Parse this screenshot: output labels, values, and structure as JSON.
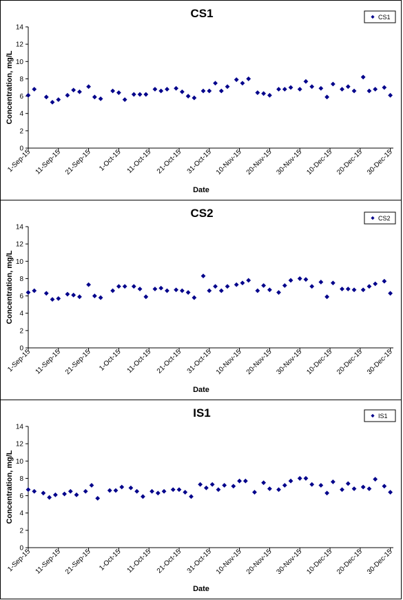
{
  "marker_color": "#00008B",
  "chart_data": [
    {
      "type": "scatter",
      "title": "CS1",
      "xlabel": "Date",
      "ylabel": "Concentration, mg/L",
      "legend": [
        "CS1"
      ],
      "legend_position": "top-right",
      "ylim": [
        0,
        14
      ],
      "yticks": [
        "0",
        "2",
        "4",
        "6",
        "8",
        "10",
        "12",
        "14"
      ],
      "xlim": [
        "2015-09-01",
        "2015-12-31"
      ],
      "xticks": [
        "1-Sep-15",
        "11-Sep-15",
        "21-Sep-15",
        "1-Oct-15",
        "11-Oct-15",
        "21-Oct-15",
        "31-Oct-15",
        "10-Nov-15",
        "20-Nov-15",
        "30-Nov-15",
        "10-Dec-15",
        "20-Dec-15",
        "30-Dec-15"
      ],
      "series": [
        {
          "name": "CS1",
          "x": [
            "2015-09-01",
            "2015-09-03",
            "2015-09-07",
            "2015-09-09",
            "2015-09-11",
            "2015-09-14",
            "2015-09-16",
            "2015-09-18",
            "2015-09-21",
            "2015-09-23",
            "2015-09-25",
            "2015-09-29",
            "2015-10-01",
            "2015-10-03",
            "2015-10-06",
            "2015-10-08",
            "2015-10-10",
            "2015-10-13",
            "2015-10-15",
            "2015-10-17",
            "2015-10-20",
            "2015-10-22",
            "2015-10-24",
            "2015-10-26",
            "2015-10-29",
            "2015-10-31",
            "2015-11-02",
            "2015-11-04",
            "2015-11-06",
            "2015-11-09",
            "2015-11-11",
            "2015-11-13",
            "2015-11-16",
            "2015-11-18",
            "2015-11-20",
            "2015-11-23",
            "2015-11-25",
            "2015-11-27",
            "2015-11-30",
            "2015-12-02",
            "2015-12-04",
            "2015-12-07",
            "2015-12-09",
            "2015-12-11",
            "2015-12-14",
            "2015-12-16",
            "2015-12-18",
            "2015-12-21",
            "2015-12-23",
            "2015-12-25",
            "2015-12-28",
            "2015-12-30"
          ],
          "y": [
            6.1,
            6.8,
            5.9,
            5.3,
            5.6,
            6.1,
            6.7,
            6.5,
            7.1,
            5.9,
            5.7,
            6.6,
            6.4,
            5.6,
            6.2,
            6.2,
            6.2,
            6.8,
            6.6,
            6.8,
            6.9,
            6.5,
            6.0,
            5.8,
            6.6,
            6.6,
            7.5,
            6.6,
            7.1,
            7.9,
            7.5,
            8.0,
            6.4,
            6.3,
            6.1,
            6.8,
            6.8,
            7.0,
            6.8,
            7.7,
            7.1,
            6.9,
            5.9,
            7.4,
            6.8,
            7.1,
            6.6,
            8.2,
            6.6,
            6.8,
            7.0,
            6.1
          ]
        }
      ]
    },
    {
      "type": "scatter",
      "title": "CS2",
      "xlabel": "Date",
      "ylabel": "Concentration, mg/L",
      "legend": [
        "CS2"
      ],
      "legend_position": "top-right",
      "ylim": [
        0,
        14
      ],
      "yticks": [
        "0",
        "2",
        "4",
        "6",
        "8",
        "10",
        "12",
        "14"
      ],
      "xlim": [
        "2015-09-01",
        "2015-12-31"
      ],
      "xticks": [
        "1-Sep-15",
        "11-Sep-15",
        "21-Sep-15",
        "1-Oct-15",
        "11-Oct-15",
        "21-Oct-15",
        "31-Oct-15",
        "10-Nov-15",
        "20-Nov-15",
        "30-Nov-15",
        "10-Dec-15",
        "20-Dec-15",
        "30-Dec-15"
      ],
      "series": [
        {
          "name": "CS2",
          "x": [
            "2015-09-01",
            "2015-09-03",
            "2015-09-07",
            "2015-09-09",
            "2015-09-11",
            "2015-09-14",
            "2015-09-16",
            "2015-09-18",
            "2015-09-21",
            "2015-09-23",
            "2015-09-25",
            "2015-09-29",
            "2015-10-01",
            "2015-10-03",
            "2015-10-06",
            "2015-10-08",
            "2015-10-10",
            "2015-10-13",
            "2015-10-15",
            "2015-10-17",
            "2015-10-20",
            "2015-10-22",
            "2015-10-24",
            "2015-10-26",
            "2015-10-29",
            "2015-10-31",
            "2015-11-02",
            "2015-11-04",
            "2015-11-06",
            "2015-11-09",
            "2015-11-11",
            "2015-11-13",
            "2015-11-16",
            "2015-11-18",
            "2015-11-20",
            "2015-11-23",
            "2015-11-25",
            "2015-11-27",
            "2015-11-30",
            "2015-12-02",
            "2015-12-04",
            "2015-12-07",
            "2015-12-09",
            "2015-12-11",
            "2015-12-14",
            "2015-12-16",
            "2015-12-18",
            "2015-12-21",
            "2015-12-23",
            "2015-12-25",
            "2015-12-28",
            "2015-12-30"
          ],
          "y": [
            6.4,
            6.6,
            6.3,
            5.6,
            5.7,
            6.2,
            6.1,
            5.9,
            7.3,
            6.0,
            5.8,
            6.6,
            7.1,
            7.1,
            7.1,
            6.8,
            5.9,
            6.8,
            6.9,
            6.6,
            6.7,
            6.6,
            6.4,
            5.8,
            8.3,
            6.6,
            7.1,
            6.6,
            7.1,
            7.3,
            7.5,
            7.8,
            6.6,
            7.2,
            6.7,
            6.4,
            7.2,
            7.8,
            8.0,
            7.9,
            7.1,
            7.6,
            5.9,
            7.5,
            6.8,
            6.8,
            6.7,
            6.7,
            7.1,
            7.4,
            7.7,
            6.3
          ]
        }
      ]
    },
    {
      "type": "scatter",
      "title": "IS1",
      "xlabel": "Date",
      "ylabel": "Concentration, mg/L",
      "legend": [
        "IS1"
      ],
      "legend_position": "top-right",
      "ylim": [
        0,
        14
      ],
      "yticks": [
        "0",
        "2",
        "4",
        "6",
        "8",
        "10",
        "12",
        "14"
      ],
      "xlim": [
        "2015-09-01",
        "2015-12-31"
      ],
      "xticks": [
        "1-Sep-15",
        "11-Sep-15",
        "21-Sep-15",
        "1-Oct-15",
        "11-Oct-15",
        "21-Oct-15",
        "31-Oct-15",
        "10-Nov-15",
        "20-Nov-15",
        "30-Nov-15",
        "10-Dec-15",
        "20-Dec-15",
        "30-Dec-15"
      ],
      "series": [
        {
          "name": "IS1",
          "x": [
            "2015-09-01",
            "2015-09-03",
            "2015-09-06",
            "2015-09-08",
            "2015-09-10",
            "2015-09-13",
            "2015-09-15",
            "2015-09-17",
            "2015-09-20",
            "2015-09-22",
            "2015-09-24",
            "2015-09-28",
            "2015-09-30",
            "2015-10-02",
            "2015-10-05",
            "2015-10-07",
            "2015-10-09",
            "2015-10-12",
            "2015-10-14",
            "2015-10-16",
            "2015-10-19",
            "2015-10-21",
            "2015-10-23",
            "2015-10-25",
            "2015-10-28",
            "2015-10-30",
            "2015-11-01",
            "2015-11-03",
            "2015-11-05",
            "2015-11-08",
            "2015-11-10",
            "2015-11-12",
            "2015-11-15",
            "2015-11-18",
            "2015-11-20",
            "2015-11-23",
            "2015-11-25",
            "2015-11-27",
            "2015-11-30",
            "2015-12-02",
            "2015-12-04",
            "2015-12-07",
            "2015-12-09",
            "2015-12-11",
            "2015-12-14",
            "2015-12-16",
            "2015-12-18",
            "2015-12-21",
            "2015-12-23",
            "2015-12-25",
            "2015-12-28",
            "2015-12-30"
          ],
          "y": [
            6.7,
            6.5,
            6.3,
            5.8,
            6.1,
            6.2,
            6.5,
            6.1,
            6.5,
            7.2,
            5.7,
            6.6,
            6.6,
            7.0,
            6.9,
            6.5,
            5.9,
            6.5,
            6.3,
            6.5,
            6.7,
            6.7,
            6.4,
            5.9,
            7.3,
            6.9,
            7.3,
            6.7,
            7.2,
            7.1,
            7.7,
            7.7,
            6.4,
            7.5,
            6.8,
            6.7,
            7.2,
            7.7,
            8.0,
            8.0,
            7.3,
            7.2,
            6.3,
            7.6,
            6.7,
            7.4,
            6.8,
            7.0,
            6.8,
            7.9,
            7.1,
            6.4
          ]
        }
      ]
    }
  ]
}
